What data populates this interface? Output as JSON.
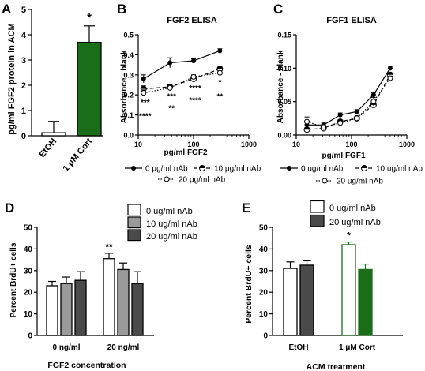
{
  "colors": {
    "green": "#1a6e1a",
    "gray": "#9a9a9a",
    "dark": "#4a4a4a",
    "white": "#ffffff",
    "black": "#000000"
  },
  "panels": {
    "A": "A",
    "B": "B",
    "C": "C",
    "D": "D",
    "E": "E"
  },
  "chart_data": [
    {
      "id": "A",
      "type": "bar",
      "title": "",
      "ylabel": "pg/ml FGF2 protein in ACM",
      "ylim": [
        0,
        5
      ],
      "yticks": [
        "0",
        "1",
        "2",
        "3",
        "4",
        "5"
      ],
      "categories": [
        "EtOH",
        "1 μM Cort"
      ],
      "values": [
        0.12,
        3.7
      ],
      "errors": [
        0.45,
        0.65
      ],
      "colors": [
        "#ffffff",
        "#1a6e1a"
      ],
      "annotations": [
        {
          "category": "1 μM Cort",
          "text": "*"
        }
      ]
    },
    {
      "id": "B",
      "type": "line",
      "title": "FGF2 ELISA",
      "xlabel": "pg/ml FGF2",
      "ylabel": "Absorbance - blank",
      "xscale": "log",
      "xlim": [
        10,
        1000
      ],
      "xticks": [
        "10",
        "100",
        "1000"
      ],
      "ylim": [
        0,
        0.5
      ],
      "yticks": [
        "0.0",
        "0.1",
        "0.2",
        "0.3",
        "0.4",
        "0.5"
      ],
      "x": [
        12.5,
        37.5,
        100,
        300
      ],
      "series": [
        {
          "name": "0 μg/ml nAb",
          "values": [
            0.28,
            0.36,
            0.37,
            0.42
          ],
          "errors": [
            0.02,
            0.025,
            0.01,
            0.01
          ]
        },
        {
          "name": "10 μg/ml nAb",
          "values": [
            0.23,
            0.24,
            0.28,
            0.33
          ],
          "errors": [
            0.015,
            0.01,
            0.01,
            0.01
          ]
        },
        {
          "name": "20 μg/ml nAb",
          "values": [
            0.21,
            0.235,
            0.29,
            0.31
          ],
          "errors": [
            0.015,
            0.015,
            0.01,
            0.01
          ]
        }
      ],
      "annotations": [
        {
          "x": 12.5,
          "y": 0.15,
          "text": "***"
        },
        {
          "x": 12.5,
          "y": 0.08,
          "text": "****"
        },
        {
          "x": 37.5,
          "y": 0.18,
          "text": "***"
        },
        {
          "x": 37.5,
          "y": 0.12,
          "text": "**"
        },
        {
          "x": 100,
          "y": 0.22,
          "text": "****"
        },
        {
          "x": 100,
          "y": 0.16,
          "text": "****"
        },
        {
          "x": 300,
          "y": 0.25,
          "text": "*"
        },
        {
          "x": 300,
          "y": 0.18,
          "text": "**"
        }
      ]
    },
    {
      "id": "C",
      "type": "line",
      "title": "FGF1 ELISA",
      "xlabel": "pg/ml FGF1",
      "ylabel": "Absorbance - blank",
      "xscale": "log",
      "xlim": [
        10,
        1000
      ],
      "xticks": [
        "10",
        "100",
        "1000"
      ],
      "ylim": [
        0,
        0.15
      ],
      "yticks": [
        "0.00",
        "0.05",
        "0.10",
        "0.15"
      ],
      "x": [
        15.6,
        31.25,
        62.5,
        125,
        250,
        500
      ],
      "series": [
        {
          "name": "0 ug/ml nAb",
          "values": [
            0.015,
            0.015,
            0.03,
            0.035,
            0.06,
            0.1
          ],
          "errors": [
            0.005,
            0.003,
            0.003,
            0.003,
            0.003,
            0.003
          ]
        },
        {
          "name": "10 ug/ml nAb",
          "values": [
            0.008,
            0.01,
            0.02,
            0.025,
            0.045,
            0.09
          ],
          "errors": [
            0.003,
            0.003,
            0.003,
            0.003,
            0.003,
            0.003
          ]
        },
        {
          "name": "20 ug/ml nAb",
          "values": [
            0.02,
            0.012,
            0.018,
            0.025,
            0.05,
            0.085
          ],
          "errors": [
            0.007,
            0.003,
            0.003,
            0.003,
            0.006,
            0.003
          ]
        }
      ]
    },
    {
      "id": "D",
      "type": "bar",
      "title": "",
      "xlabel": "FGF2 concentration",
      "ylabel": "Percent BrdU+ cells",
      "ylim": [
        0,
        50
      ],
      "yticks": [
        "0",
        "10",
        "20",
        "30",
        "40",
        "50"
      ],
      "categories": [
        "0 ng/ml",
        "20 ng/ml"
      ],
      "series": [
        {
          "name": "0 ug/ml nAb",
          "color": "#ffffff",
          "values": [
            23,
            35.5
          ],
          "errors": [
            2,
            2.5
          ]
        },
        {
          "name": "10 ug/ml nAb",
          "color": "#9a9a9a",
          "values": [
            24,
            30.5
          ],
          "errors": [
            3,
            3
          ]
        },
        {
          "name": "20 ug/ml nAb",
          "color": "#4a4a4a",
          "values": [
            25.5,
            24
          ],
          "errors": [
            4,
            5.5
          ]
        }
      ],
      "annotations": [
        {
          "category": "20 ng/ml",
          "series": 0,
          "text": "**"
        }
      ]
    },
    {
      "id": "E",
      "type": "bar",
      "title": "",
      "xlabel": "ACM treatment",
      "ylabel": "Percent BrdU+ cells",
      "ylim": [
        0,
        50
      ],
      "yticks": [
        "0",
        "10",
        "20",
        "30",
        "40",
        "50"
      ],
      "categories": [
        "EtOH",
        "1 μM Cort"
      ],
      "series": [
        {
          "name": "0 ug/ml nAb",
          "values": [
            31,
            42
          ],
          "errors": [
            3,
            1.2
          ]
        },
        {
          "name": "20 ug/ml nAb",
          "values": [
            32.5,
            30.5
          ],
          "errors": [
            2,
            2.5
          ]
        }
      ],
      "bar_styles": [
        {
          "fill": "#ffffff",
          "stroke": "#000000"
        },
        {
          "fill": "#4a4a4a",
          "stroke": "#000000"
        },
        {
          "fill": "#ffffff",
          "stroke": "#1a6e1a"
        },
        {
          "fill": "#1a6e1a",
          "stroke": "#1a6e1a"
        }
      ],
      "annotations": [
        {
          "category": "1 μM Cort",
          "series": 0,
          "text": "*"
        }
      ]
    }
  ]
}
